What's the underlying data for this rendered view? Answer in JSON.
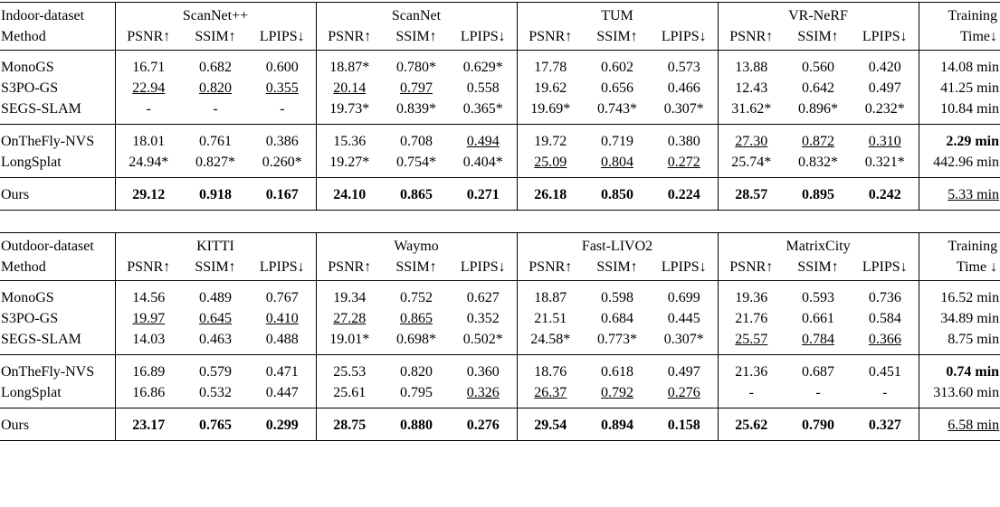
{
  "tables": [
    {
      "dataset_label": "Indoor-dataset",
      "method_label": "Method",
      "groups": [
        "ScanNet++",
        "ScanNet",
        "TUM",
        "VR-NeRF"
      ],
      "metrics": [
        "PSNR↑",
        "SSIM↑",
        "LPIPS↓"
      ],
      "time_label": [
        "Training",
        "Time↓"
      ],
      "sections": [
        [
          {
            "method": "MonoGS",
            "cells": [
              "16.71",
              "0.682",
              "0.600",
              "18.87*",
              "0.780*",
              "0.629*",
              "17.78",
              "0.602",
              "0.573",
              "13.88",
              "0.560",
              "0.420",
              "14.08 min"
            ]
          },
          {
            "method": "S3PO-GS",
            "cells": [
              {
                "text": "22.94",
                "style": "underline"
              },
              {
                "text": "0.820",
                "style": "underline"
              },
              {
                "text": "0.355",
                "style": "underline"
              },
              {
                "text": "20.14",
                "style": "underline"
              },
              {
                "text": "0.797",
                "style": "underline"
              },
              "0.558",
              "19.62",
              "0.656",
              "0.466",
              "12.43",
              "0.642",
              "0.497",
              "41.25 min"
            ]
          },
          {
            "method": "SEGS-SLAM",
            "cells": [
              "-",
              "-",
              "-",
              "19.73*",
              "0.839*",
              "0.365*",
              "19.69*",
              "0.743*",
              "0.307*",
              "31.62*",
              "0.896*",
              "0.232*",
              "10.84 min"
            ]
          }
        ],
        [
          {
            "method": "OnTheFly-NVS",
            "cells": [
              "18.01",
              "0.761",
              "0.386",
              "15.36",
              "0.708",
              {
                "text": "0.494",
                "style": "underline"
              },
              "19.72",
              "0.719",
              "0.380",
              {
                "text": "27.30",
                "style": "underline"
              },
              {
                "text": "0.872",
                "style": "underline"
              },
              {
                "text": "0.310",
                "style": "underline"
              },
              {
                "text": "2.29 min",
                "style": "bold"
              }
            ]
          },
          {
            "method": "LongSplat",
            "cells": [
              "24.94*",
              "0.827*",
              "0.260*",
              "19.27*",
              "0.754*",
              "0.404*",
              {
                "text": "25.09",
                "style": "underline"
              },
              {
                "text": "0.804",
                "style": "underline"
              },
              {
                "text": "0.272",
                "style": "underline"
              },
              "25.74*",
              "0.832*",
              "0.321*",
              "442.96 min"
            ]
          }
        ],
        [
          {
            "method": "Ours",
            "cells": [
              {
                "text": "29.12",
                "style": "bold"
              },
              {
                "text": "0.918",
                "style": "bold"
              },
              {
                "text": "0.167",
                "style": "bold"
              },
              {
                "text": "24.10",
                "style": "bold"
              },
              {
                "text": "0.865",
                "style": "bold"
              },
              {
                "text": "0.271",
                "style": "bold"
              },
              {
                "text": "26.18",
                "style": "bold"
              },
              {
                "text": "0.850",
                "style": "bold"
              },
              {
                "text": "0.224",
                "style": "bold"
              },
              {
                "text": "28.57",
                "style": "bold"
              },
              {
                "text": "0.895",
                "style": "bold"
              },
              {
                "text": "0.242",
                "style": "bold"
              },
              {
                "text": "5.33 min",
                "style": "underline"
              }
            ]
          }
        ]
      ]
    },
    {
      "dataset_label": "Outdoor-dataset",
      "method_label": "Method",
      "groups": [
        "KITTI",
        "Waymo",
        "Fast-LIVO2",
        "MatrixCity"
      ],
      "metrics": [
        "PSNR↑",
        "SSIM↑",
        "LPIPS↓"
      ],
      "time_label": [
        "Training",
        "Time ↓"
      ],
      "sections": [
        [
          {
            "method": "MonoGS",
            "cells": [
              "14.56",
              "0.489",
              "0.767",
              "19.34",
              "0.752",
              "0.627",
              "18.87",
              "0.598",
              "0.699",
              "19.36",
              "0.593",
              "0.736",
              "16.52 min"
            ]
          },
          {
            "method": "S3PO-GS",
            "cells": [
              {
                "text": "19.97",
                "style": "underline"
              },
              {
                "text": "0.645",
                "style": "underline"
              },
              {
                "text": "0.410",
                "style": "underline"
              },
              {
                "text": "27.28",
                "style": "underline"
              },
              {
                "text": "0.865",
                "style": "underline"
              },
              "0.352",
              "21.51",
              "0.684",
              "0.445",
              "21.76",
              "0.661",
              "0.584",
              "34.89 min"
            ]
          },
          {
            "method": "SEGS-SLAM",
            "cells": [
              "14.03",
              "0.463",
              "0.488",
              "19.01*",
              "0.698*",
              "0.502*",
              "24.58*",
              "0.773*",
              "0.307*",
              {
                "text": "25.57",
                "style": "underline"
              },
              {
                "text": "0.784",
                "style": "underline"
              },
              {
                "text": "0.366",
                "style": "underline"
              },
              "8.75 min"
            ]
          }
        ],
        [
          {
            "method": "OnTheFly-NVS",
            "cells": [
              "16.89",
              "0.579",
              "0.471",
              "25.53",
              "0.820",
              "0.360",
              "18.76",
              "0.618",
              "0.497",
              "21.36",
              "0.687",
              "0.451",
              {
                "text": "0.74 min",
                "style": "bold"
              }
            ]
          },
          {
            "method": "LongSplat",
            "cells": [
              "16.86",
              "0.532",
              "0.447",
              "25.61",
              "0.795",
              {
                "text": "0.326",
                "style": "underline"
              },
              {
                "text": "26.37",
                "style": "underline"
              },
              {
                "text": "0.792",
                "style": "underline"
              },
              {
                "text": "0.276",
                "style": "underline"
              },
              "-",
              "-",
              "-",
              "313.60 min"
            ]
          }
        ],
        [
          {
            "method": "Ours",
            "cells": [
              {
                "text": "23.17",
                "style": "bold"
              },
              {
                "text": "0.765",
                "style": "bold"
              },
              {
                "text": "0.299",
                "style": "bold"
              },
              {
                "text": "28.75",
                "style": "bold"
              },
              {
                "text": "0.880",
                "style": "bold"
              },
              {
                "text": "0.276",
                "style": "bold"
              },
              {
                "text": "29.54",
                "style": "bold"
              },
              {
                "text": "0.894",
                "style": "bold"
              },
              {
                "text": "0.158",
                "style": "bold"
              },
              {
                "text": "25.62",
                "style": "bold"
              },
              {
                "text": "0.790",
                "style": "bold"
              },
              {
                "text": "0.327",
                "style": "bold"
              },
              {
                "text": "6.58 min",
                "style": "underline"
              }
            ]
          }
        ]
      ]
    }
  ]
}
